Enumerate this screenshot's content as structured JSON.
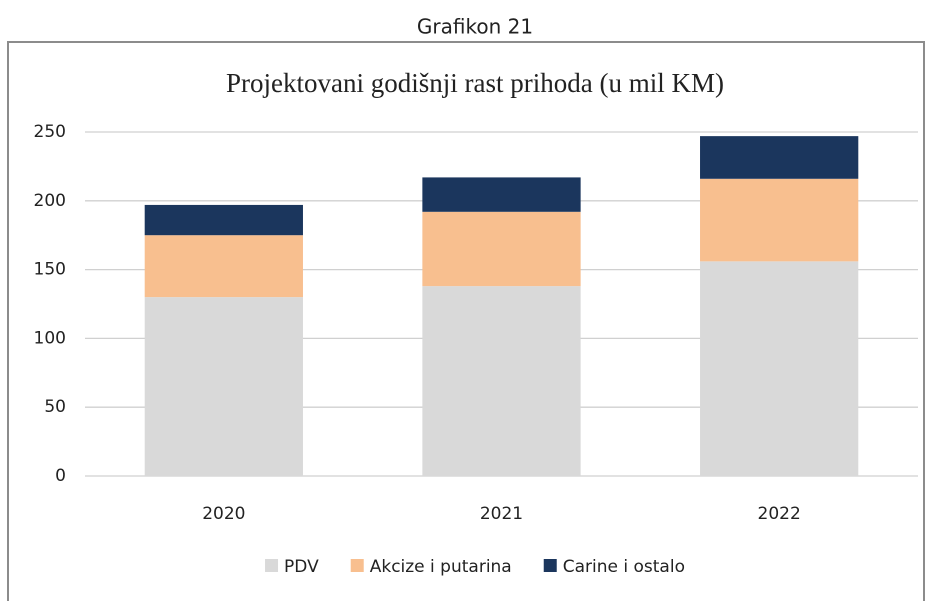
{
  "header": "Grafikon 21",
  "chart_data": {
    "type": "stacked_bar",
    "title": "Projektovani godišnji rast prihoda (u mil KM)",
    "categories": [
      "2020",
      "2021",
      "2022"
    ],
    "series": [
      {
        "name": "PDV",
        "color": "#d9d9d9",
        "values": [
          130,
          138,
          156
        ]
      },
      {
        "name": "Akcize i putarina",
        "color": "#f8bf8f",
        "values": [
          45,
          54,
          60
        ]
      },
      {
        "name": "Carine i ostalo",
        "color": "#1b365d",
        "values": [
          22,
          25,
          31
        ]
      }
    ],
    "ylim": [
      0,
      250
    ],
    "yticks": [
      0,
      50,
      100,
      150,
      200,
      250
    ],
    "grid": true,
    "legend": "bottom"
  }
}
